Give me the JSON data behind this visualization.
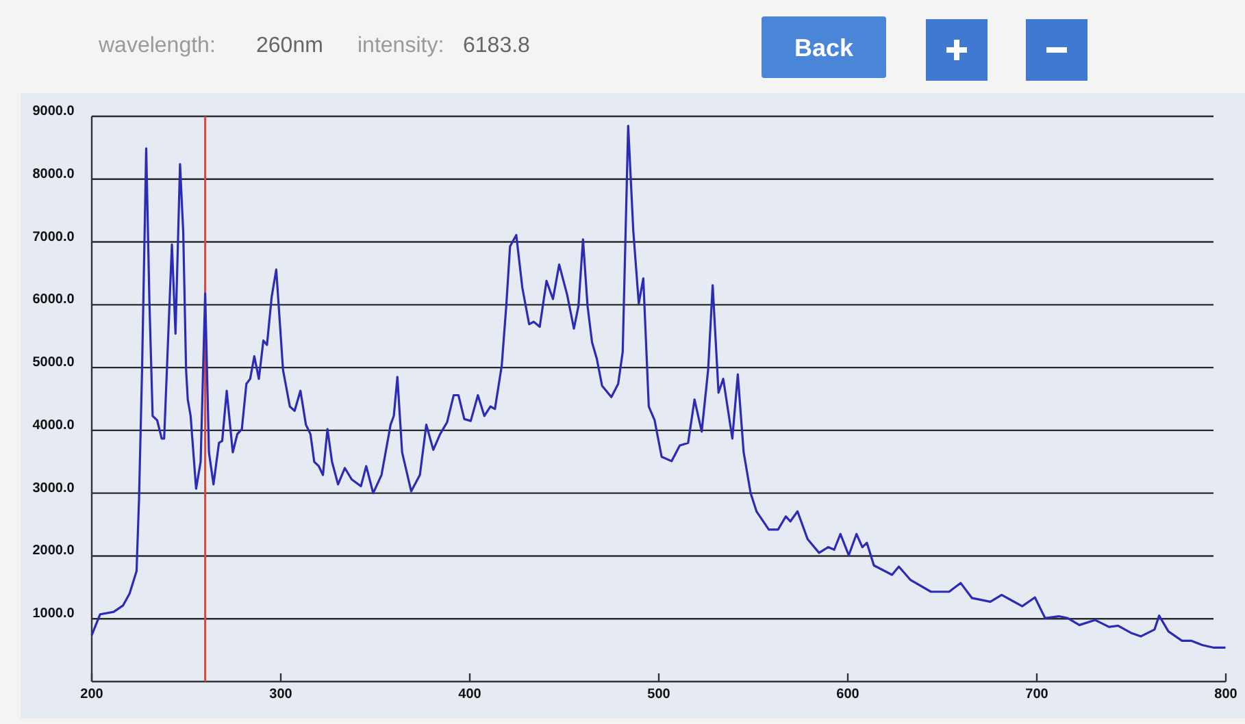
{
  "chart_data": {
    "type": "line",
    "annotations": [
      "wavelength:",
      "260nm",
      "intensity:",
      "6183.8",
      "Back"
    ],
    "xlim": [
      200,
      800
    ],
    "xticks": [
      200,
      300,
      400,
      500,
      600,
      700,
      800
    ],
    "ylim": [
      0,
      9000
    ],
    "yticks": [
      {
        "value": 1000,
        "label": "1000.0"
      },
      {
        "value": 2000,
        "label": "2000.0"
      },
      {
        "value": 3000,
        "label": "3000.0"
      },
      {
        "value": 4000,
        "label": "4000.0"
      },
      {
        "value": 5000,
        "label": "5000.0"
      },
      {
        "value": 6000,
        "label": "6000.0"
      },
      {
        "value": 7000,
        "label": "7000.0"
      },
      {
        "value": 8000,
        "label": "8000.0"
      },
      {
        "value": 9000,
        "label": "9000.0"
      }
    ],
    "grid": "y",
    "marker": "none",
    "line_style": "solid",
    "ref_lines": [
      {
        "axis": "x",
        "value": 260,
        "color": "#d9473f"
      }
    ],
    "series": [
      {
        "color": "#2b2bb5",
        "x": [
          200,
          204.4,
          211.6,
          216.5,
          220,
          223.7,
          225,
          226.6,
          228.8,
          230.5,
          232.2,
          234.6,
          237,
          238.3,
          240.7,
          242.4,
          244.3,
          246.7,
          248.4,
          249.9,
          250.8,
          252.3,
          255.2,
          257.6,
          260,
          262,
          264.4,
          267.3,
          269,
          271.4,
          274.6,
          277,
          279.4,
          281.8,
          283.8,
          286,
          288.4,
          290.8,
          292.7,
          295.2,
          297.6,
          301.2,
          304.8,
          307.3,
          310.4,
          313.3,
          315.7,
          317.7,
          320.1,
          322.3,
          324.7,
          327.1,
          330.3,
          333.9,
          337.5,
          342.4,
          345.2,
          348.9,
          353.3,
          358.1,
          359.8,
          361.7,
          364.2,
          369,
          373.6,
          377,
          380.7,
          384.3,
          388,
          391.5,
          394,
          397.1,
          400.5,
          404.3,
          407.7,
          410.9,
          413.3,
          416.9,
          419.3,
          421.3,
          424.6,
          427.8,
          431.4,
          433.8,
          437,
          440.6,
          444,
          447.3,
          451.5,
          455.1,
          457.5,
          459.9,
          462.3,
          464.7,
          467.2,
          470,
          474.9,
          478.5,
          480.9,
          483.8,
          486.5,
          489.4,
          491.8,
          494.7,
          497.8,
          501.5,
          506.8,
          511.1,
          515.5,
          518.9,
          522.7,
          526.1,
          528.5,
          531.6,
          534.1,
          538.9,
          541.8,
          544.9,
          548.6,
          551.7,
          558.2,
          563.1,
          567.2,
          569.6,
          573.4,
          578.7,
          584.8,
          589.6,
          592.8,
          596.1,
          600.5,
          604.6,
          607.7,
          610.1,
          613.8,
          623.4,
          627,
          633.1,
          644,
          653.6,
          659.7,
          665.7,
          675.4,
          681.4,
          687.4,
          692.3,
          699,
          704.4,
          711.6,
          716.4,
          722.5,
          730.9,
          738.2,
          743,
          750.2,
          755.1,
          762.3,
          764.7,
          769.6,
          776.8,
          781.6,
          787.7,
          793.7,
          799.8
        ],
        "values": [
          740,
          1070,
          1110,
          1210,
          1400,
          1760,
          2900,
          4950,
          8490,
          6050,
          4230,
          4160,
          3870,
          3870,
          5690,
          6960,
          5540,
          8240,
          7150,
          4960,
          4490,
          4230,
          3070,
          3500,
          6180,
          3650,
          3140,
          3800,
          3830,
          4630,
          3650,
          3940,
          4020,
          4740,
          4820,
          5180,
          4820,
          5430,
          5360,
          6130,
          6560,
          4960,
          4380,
          4310,
          4630,
          4090,
          3940,
          3500,
          3430,
          3290,
          4020,
          3500,
          3140,
          3400,
          3220,
          3110,
          3430,
          3000,
          3290,
          4090,
          4230,
          4850,
          3650,
          3030,
          3290,
          4090,
          3690,
          3940,
          4130,
          4560,
          4560,
          4180,
          4150,
          4560,
          4230,
          4380,
          4340,
          5030,
          5980,
          6930,
          7110,
          6270,
          5690,
          5730,
          5650,
          6380,
          6090,
          6640,
          6160,
          5620,
          5980,
          7040,
          5980,
          5400,
          5140,
          4710,
          4530,
          4740,
          5250,
          8850,
          7180,
          6020,
          6420,
          4380,
          4160,
          3580,
          3510,
          3760,
          3800,
          4490,
          3980,
          4960,
          6310,
          4600,
          4820,
          3870,
          4890,
          3650,
          3000,
          2710,
          2420,
          2420,
          2630,
          2550,
          2710,
          2270,
          2050,
          2140,
          2100,
          2350,
          2010,
          2350,
          2140,
          2210,
          1850,
          1700,
          1830,
          1620,
          1430,
          1430,
          1570,
          1330,
          1270,
          1380,
          1280,
          1200,
          1340,
          1010,
          1040,
          1010,
          900,
          980,
          870,
          890,
          770,
          720,
          830,
          1050,
          800,
          650,
          650,
          580,
          540,
          540
        ]
      }
    ]
  }
}
